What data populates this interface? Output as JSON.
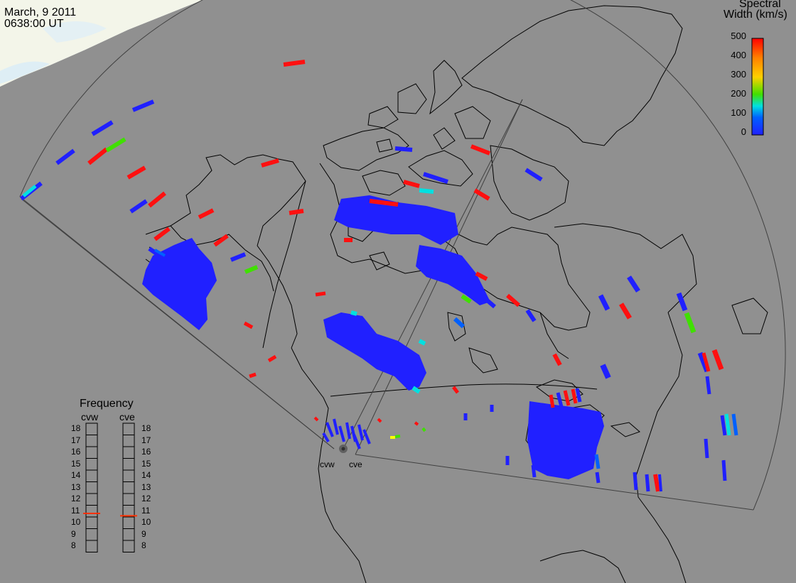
{
  "header": {
    "date": "March, 9 2011",
    "time": "0638:00 UT"
  },
  "colorbar": {
    "title_line1": "Spectral",
    "title_line2": "Width (km/s)",
    "ticks": [
      "500",
      "400",
      "300",
      "200",
      "100",
      "0"
    ],
    "min": 0,
    "max": 500,
    "colors": [
      "#ff0000",
      "#ff8000",
      "#ffd000",
      "#40e000",
      "#00e0e0",
      "#0060ff",
      "#2020ff"
    ]
  },
  "frequency_panel": {
    "title": "Frequency",
    "radars": [
      {
        "name": "cvw",
        "frequency_mhz": 10.8
      },
      {
        "name": "cve",
        "frequency_mhz": 10.6
      }
    ],
    "scale_labels": [
      "18",
      "17",
      "16",
      "15",
      "14",
      "13",
      "12",
      "11",
      "10",
      "9",
      "8"
    ]
  },
  "map": {
    "radar_labels": [
      "cvw",
      "cve"
    ],
    "colors": {
      "background": "#909090",
      "coast": "#000000",
      "daylight": "#f4f4e4",
      "daylight_edge": "#e4f0f8",
      "low_width": "#2020ff",
      "high_width": "#ff1010"
    }
  }
}
